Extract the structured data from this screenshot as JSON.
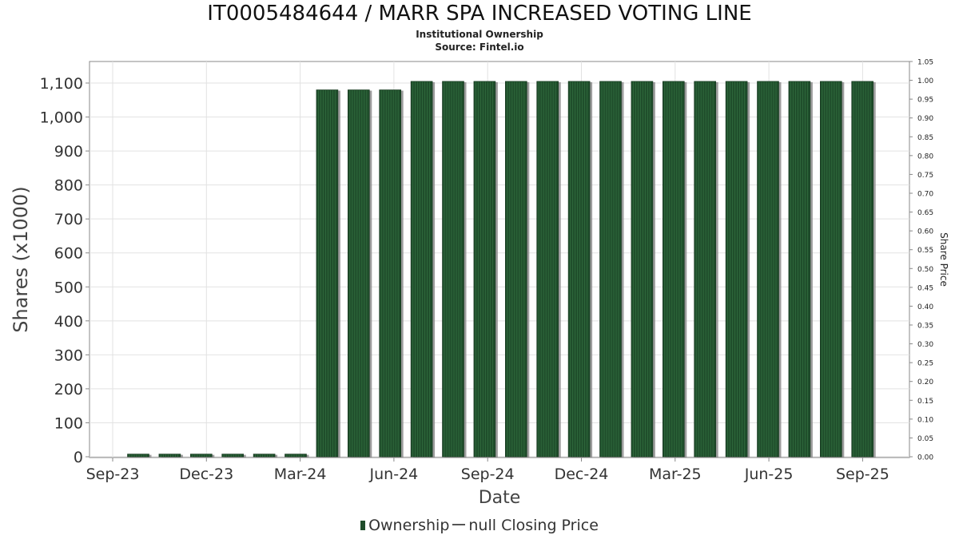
{
  "header": {
    "title": "IT0005484644 / MARR SPA INCREASED VOTING LINE",
    "subtitle": "Institutional Ownership",
    "source": "Source: Fintel.io"
  },
  "legend": {
    "ownership": "Ownership",
    "price": "null Closing Price"
  },
  "colors": {
    "bar": "#1f4d2b",
    "bar_shadow": "#8c8c8c",
    "grid": "#e2e2e2",
    "axis": "#888888"
  },
  "chart_data": {
    "type": "bar",
    "xlabel": "Date",
    "ylabel": "Shares (x1000)",
    "y2label": "Share Price",
    "ylim": [
      0,
      1160
    ],
    "y2lim": [
      0,
      1.05
    ],
    "yticks": [
      "0",
      "100",
      "200",
      "300",
      "400",
      "500",
      "600",
      "700",
      "800",
      "900",
      "1,000",
      "1,100"
    ],
    "y2ticks": [
      "0.00",
      "0.05",
      "0.10",
      "0.15",
      "0.20",
      "0.25",
      "0.30",
      "0.35",
      "0.40",
      "0.45",
      "0.50",
      "0.55",
      "0.60",
      "0.65",
      "0.70",
      "0.75",
      "0.80",
      "0.85",
      "0.90",
      "0.95",
      "1.00",
      "1.05"
    ],
    "xticks": [
      "Sep-23",
      "Dec-23",
      "Mar-24",
      "Jun-24",
      "Sep-24",
      "Dec-24",
      "Mar-25",
      "Jun-25",
      "Sep-25"
    ],
    "grid": true,
    "legend_position": "bottom",
    "series": [
      {
        "name": "Ownership",
        "values": [
          8,
          8,
          8,
          8,
          8,
          8,
          1080,
          1080,
          1080,
          1105,
          1105,
          1105,
          1105,
          1105,
          1105,
          1105,
          1105,
          1105,
          1105,
          1105,
          1105,
          1105,
          1105,
          1105
        ]
      }
    ]
  }
}
